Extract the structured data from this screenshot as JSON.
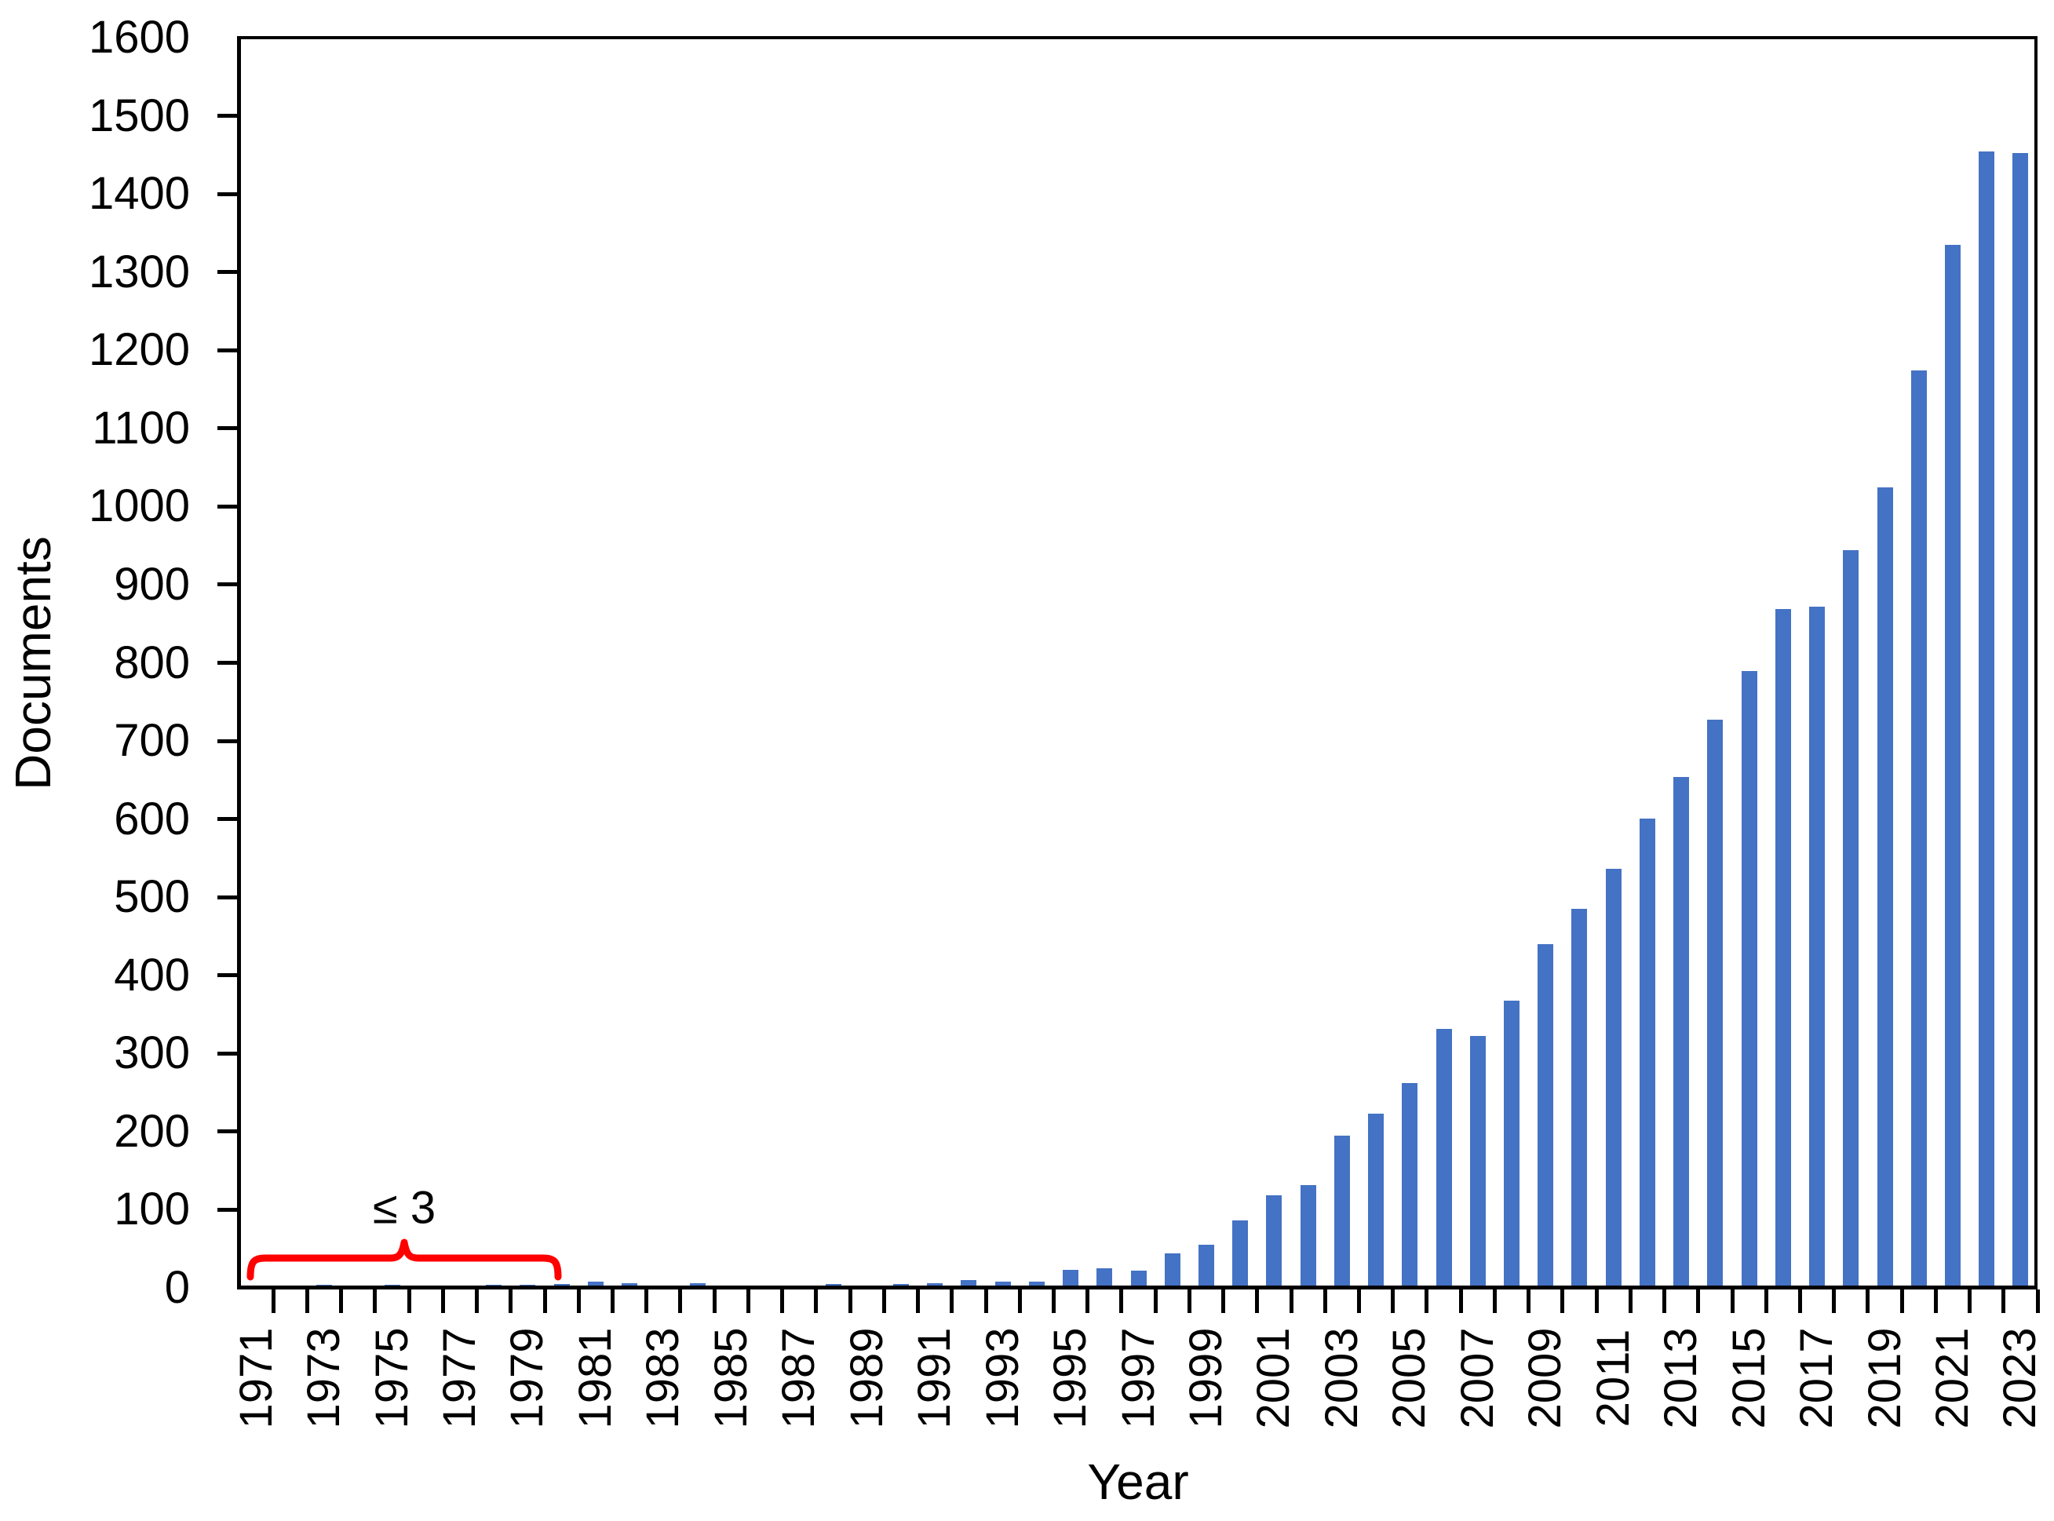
{
  "chart_data": {
    "type": "bar",
    "title": "",
    "xlabel": "Year",
    "ylabel": "Documents",
    "ylim": [
      0,
      1600
    ],
    "ytick_step": 100,
    "x_label_every_n_years": 2,
    "legend": "none",
    "grid": "off",
    "bar_color": "#4472C4",
    "axis_color": "#000000",
    "annotation": {
      "text": "≤ 3",
      "bracket_color": "#FF0000",
      "covers_years": "1971-1980"
    },
    "categories": [
      1971,
      1972,
      1973,
      1974,
      1975,
      1976,
      1977,
      1978,
      1979,
      1980,
      1981,
      1982,
      1983,
      1984,
      1985,
      1986,
      1987,
      1988,
      1989,
      1990,
      1991,
      1992,
      1993,
      1994,
      1995,
      1996,
      1997,
      1998,
      1999,
      2000,
      2001,
      2002,
      2003,
      2004,
      2005,
      2006,
      2007,
      2008,
      2009,
      2010,
      2011,
      2012,
      2013,
      2014,
      2015,
      2016,
      2017,
      2018,
      2019,
      2020,
      2021,
      2022,
      2023
    ],
    "values": [
      1,
      1,
      2,
      1,
      2,
      1,
      1,
      2,
      2,
      3,
      6,
      4,
      1,
      4,
      1,
      1,
      1,
      3,
      1,
      3,
      4,
      8,
      6,
      6,
      21,
      23,
      20,
      42,
      53,
      84,
      117,
      130,
      193,
      221,
      260,
      329,
      320,
      366,
      438,
      483,
      534,
      599,
      652,
      725,
      787,
      867,
      870,
      942,
      1022,
      1172,
      1333,
      1452,
      1450
    ]
  }
}
